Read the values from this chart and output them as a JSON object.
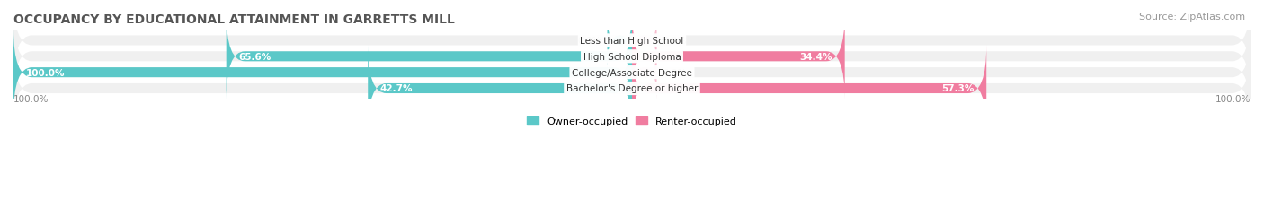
{
  "title": "OCCUPANCY BY EDUCATIONAL ATTAINMENT IN GARRETTS MILL",
  "source": "Source: ZipAtlas.com",
  "categories": [
    "Less than High School",
    "High School Diploma",
    "College/Associate Degree",
    "Bachelor's Degree or higher"
  ],
  "owner_values": [
    0.0,
    65.6,
    100.0,
    42.7
  ],
  "renter_values": [
    0.0,
    34.4,
    0.0,
    57.3
  ],
  "owner_color": "#5bc8c8",
  "renter_color": "#f07da0",
  "renter_color_light": "#f9b8cc",
  "bar_bg_color": "#f0f0f0",
  "owner_label": "Owner-occupied",
  "renter_label": "Renter-occupied",
  "axis_label_left": "100.0%",
  "axis_label_right": "100.0%",
  "title_fontsize": 10,
  "source_fontsize": 8,
  "bar_height": 0.62,
  "figsize": [
    14.06,
    2.32
  ],
  "dpi": 100
}
